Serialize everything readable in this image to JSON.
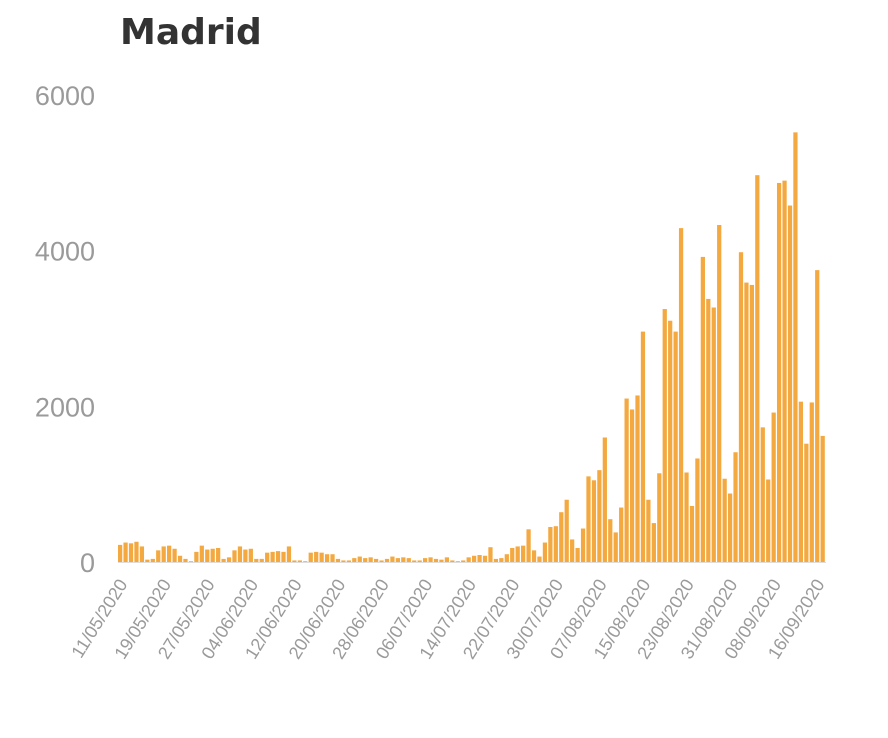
{
  "chart_data": {
    "type": "bar",
    "title": "Madrid",
    "xlabel": "",
    "ylabel": "",
    "ylim": [
      0,
      6000
    ],
    "yticks": [
      "0",
      "2000",
      "4000",
      "6000"
    ],
    "grid": false,
    "legend": "none",
    "bar_color": "#f4a940",
    "xtick_labels": [
      "11/05/2020",
      "19/05/2020",
      "27/05/2020",
      "04/06/2020",
      "12/06/2020",
      "20/06/2020",
      "28/06/2020",
      "06/07/2020",
      "14/07/2020",
      "22/07/2020",
      "30/07/2020",
      "07/08/2020",
      "15/08/2020",
      "23/08/2020",
      "31/08/2020",
      "08/09/2020",
      "16/09/2020"
    ],
    "values": [
      220,
      250,
      240,
      260,
      200,
      30,
      40,
      150,
      200,
      210,
      170,
      80,
      40,
      10,
      130,
      210,
      160,
      170,
      180,
      40,
      60,
      150,
      200,
      160,
      170,
      40,
      40,
      120,
      130,
      140,
      130,
      200,
      20,
      20,
      10,
      120,
      130,
      120,
      100,
      100,
      40,
      20,
      20,
      50,
      70,
      50,
      60,
      40,
      20,
      40,
      70,
      50,
      60,
      50,
      20,
      20,
      50,
      60,
      40,
      30,
      60,
      20,
      10,
      20,
      60,
      80,
      90,
      80,
      190,
      40,
      50,
      100,
      180,
      200,
      210,
      420,
      150,
      70,
      250,
      450,
      460,
      640,
      800,
      290,
      180,
      430,
      1100,
      1050,
      1180,
      1600,
      550,
      380,
      700,
      2100,
      1960,
      2140,
      2960,
      800,
      500,
      1140,
      3250,
      3100,
      2960,
      4290,
      1150,
      720,
      1330,
      3920,
      3380,
      3270,
      4330,
      1070,
      880,
      1410,
      3980,
      3590,
      3560,
      4970,
      1730,
      1060,
      1920,
      4870,
      4900,
      4580,
      5520,
      2060,
      1520,
      2050,
      3750,
      1620
    ]
  }
}
